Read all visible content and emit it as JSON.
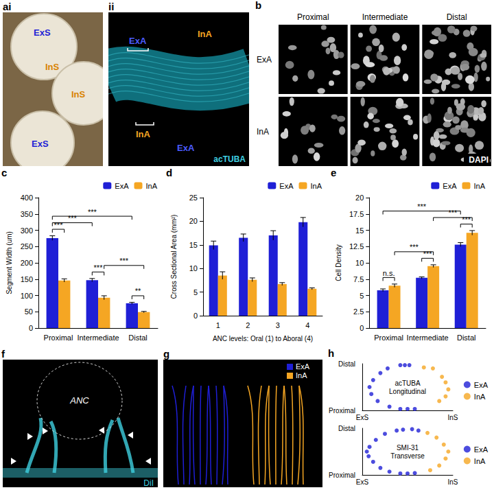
{
  "panel_letters": [
    "ai",
    "ii",
    "b",
    "c",
    "d",
    "e",
    "f",
    "g",
    "h"
  ],
  "images": {
    "ai": {
      "texts": [
        {
          "text": "ExS",
          "color": "#1f1fd6"
        },
        {
          "text": "InS",
          "color": "#d98200"
        },
        {
          "text": "InS",
          "color": "#d98200"
        },
        {
          "text": "ExS",
          "color": "#1f1fd6"
        }
      ]
    },
    "ii": {
      "texts": [
        {
          "text": "ExA",
          "color": "#4b5bff"
        },
        {
          "text": "InA",
          "color": "#f5a623"
        },
        {
          "text": "InA",
          "color": "#f5a623"
        },
        {
          "text": "ExA",
          "color": "#4b5bff"
        },
        {
          "text": "acTUBA",
          "color": "#3fd0e0"
        }
      ]
    },
    "b": {
      "columns": [
        "Proximal",
        "Intermediate",
        "Distal"
      ],
      "rows": [
        "ExA",
        "InA"
      ],
      "stain": "DAPI"
    },
    "f": {
      "region": "ANC",
      "stain": "DiI",
      "color": "#3fd0e0"
    },
    "g": {
      "legend": "top-right",
      "series": [
        {
          "name": "ExA",
          "color": "#1f1fd6"
        },
        {
          "name": "InA",
          "color": "#f5a623"
        }
      ]
    }
  },
  "chart_data": [
    {
      "type": "bar",
      "ylabel": "Segment Width (um)",
      "categories": [
        "Proximal",
        "Intermediate",
        "Distal"
      ],
      "series": [
        {
          "name": "ExA",
          "color": "#1f1fd6",
          "values": [
            276,
            147,
            76
          ],
          "errors": [
            7,
            5,
            3
          ]
        },
        {
          "name": "InA",
          "color": "#f5a623",
          "values": [
            146,
            93,
            49
          ],
          "errors": [
            5,
            6,
            2
          ]
        }
      ],
      "ylim": [
        0,
        400
      ],
      "yticks": [
        0,
        50,
        100,
        150,
        200,
        250,
        300,
        350,
        400
      ],
      "grid": false,
      "legend": "top-right",
      "annotations": [
        {
          "text": "***",
          "from": [
            "Proximal",
            "ExA"
          ],
          "to": [
            "Proximal",
            "InA"
          ]
        },
        {
          "text": "***",
          "from": [
            "Intermediate",
            "ExA"
          ],
          "to": [
            "Intermediate",
            "InA"
          ]
        },
        {
          "text": "**",
          "from": [
            "Distal",
            "ExA"
          ],
          "to": [
            "Distal",
            "InA"
          ]
        },
        {
          "text": "***",
          "from": [
            "Intermediate",
            "InA"
          ],
          "to": [
            "Distal",
            "InA"
          ]
        },
        {
          "text": "***",
          "from": [
            "Proximal",
            "ExA"
          ],
          "to": [
            "Intermediate",
            "ExA"
          ]
        },
        {
          "text": "***",
          "from": [
            "Proximal",
            "ExA"
          ],
          "to": [
            "Distal",
            "ExA"
          ]
        }
      ]
    },
    {
      "type": "bar",
      "xlabel": "ANC levels: Oral (1) to Aboral (4)",
      "ylabel": "Cross Sectional Area (mm²)",
      "categories": [
        "1",
        "2",
        "3",
        "4"
      ],
      "series": [
        {
          "name": "ExA",
          "color": "#1f1fd6",
          "values": [
            14.9,
            16.5,
            17.0,
            19.8
          ],
          "errors": [
            0.9,
            0.8,
            1.0,
            1.0
          ]
        },
        {
          "name": "InA",
          "color": "#f5a623",
          "values": [
            8.5,
            7.6,
            6.7,
            5.7
          ],
          "errors": [
            0.8,
            0.4,
            0.3,
            0.2
          ]
        }
      ],
      "ylim": [
        0,
        25
      ],
      "yticks": [
        0,
        5,
        10,
        15,
        20,
        25
      ],
      "grid": false,
      "legend": "top-right"
    },
    {
      "type": "bar",
      "ylabel": "Cell Density",
      "categories": [
        "Proximal",
        "Intermediate",
        "Distal"
      ],
      "series": [
        {
          "name": "ExA",
          "color": "#1f1fd6",
          "values": [
            5.8,
            7.7,
            12.8
          ],
          "errors": [
            0.2,
            0.15,
            0.3
          ]
        },
        {
          "name": "InA",
          "color": "#f5a623",
          "values": [
            6.5,
            9.5,
            14.6
          ],
          "errors": [
            0.25,
            0.2,
            0.35
          ]
        }
      ],
      "ylim": [
        0,
        20
      ],
      "yticks": [
        0,
        2.5,
        5,
        7.5,
        10,
        12.5,
        15,
        17.5,
        20
      ],
      "grid": false,
      "legend": "top-right",
      "annotations": [
        {
          "text": "n.s.",
          "from": [
            "Proximal",
            "ExA"
          ],
          "to": [
            "Proximal",
            "InA"
          ]
        },
        {
          "text": "***",
          "from": [
            "Intermediate",
            "ExA"
          ],
          "to": [
            "Intermediate",
            "InA"
          ]
        },
        {
          "text": "***",
          "from": [
            "Distal",
            "ExA"
          ],
          "to": [
            "Distal",
            "InA"
          ]
        },
        {
          "text": "***",
          "from": [
            "Proximal",
            "InA"
          ],
          "to": [
            "Intermediate",
            "InA"
          ]
        },
        {
          "text": "***",
          "from": [
            "Intermediate",
            "InA"
          ],
          "to": [
            "Distal",
            "InA"
          ]
        },
        {
          "text": "***",
          "from": [
            "Proximal",
            "ExA"
          ],
          "to": [
            "Distal",
            "ExA"
          ]
        }
      ]
    },
    {
      "type": "scatter",
      "title": "acTUBA Longitudinal",
      "xlim": [
        0,
        1
      ],
      "ylim": [
        0,
        1
      ],
      "xticks": [
        {
          "value": 0,
          "label": "ExS"
        },
        {
          "value": 1,
          "label": "InS"
        }
      ],
      "yticks": [
        {
          "value": 0,
          "label": "Proximal"
        },
        {
          "value": 1,
          "label": "Distal"
        }
      ],
      "grid": false,
      "legend": "right",
      "series": [
        {
          "name": "ExA",
          "color": "#1f1fd6",
          "values": [
            [
              0.42,
              0.97
            ],
            [
              0.47,
              0.97
            ],
            [
              0.52,
              0.97
            ],
            [
              0.28,
              0.9
            ],
            [
              0.2,
              0.8
            ],
            [
              0.12,
              0.65
            ],
            [
              0.08,
              0.5
            ],
            [
              0.1,
              0.35
            ],
            [
              0.17,
              0.2
            ],
            [
              0.3,
              0.08
            ],
            [
              0.42,
              0.03
            ],
            [
              0.5,
              0.03
            ],
            [
              0.58,
              0.03
            ]
          ]
        },
        {
          "name": "InA",
          "color": "#f5a623",
          "values": [
            [
              0.68,
              0.92
            ],
            [
              0.78,
              0.9
            ],
            [
              0.88,
              0.72
            ],
            [
              0.92,
              0.6
            ],
            [
              0.95,
              0.45
            ],
            [
              0.92,
              0.3
            ],
            [
              0.85,
              0.2
            ]
          ]
        }
      ]
    },
    {
      "type": "scatter",
      "title": "SMI-31 Transverse",
      "xlim": [
        0,
        1
      ],
      "ylim": [
        0,
        1
      ],
      "xticks": [
        {
          "value": 0,
          "label": "ExS"
        },
        {
          "value": 1,
          "label": "InS"
        }
      ],
      "yticks": [
        {
          "value": 0,
          "label": "Proximal"
        },
        {
          "value": 1,
          "label": "Distal"
        }
      ],
      "grid": false,
      "legend": "right",
      "series": [
        {
          "name": "ExA",
          "color": "#1f1fd6",
          "values": [
            [
              0.38,
              0.95
            ],
            [
              0.45,
              0.97
            ],
            [
              0.55,
              0.98
            ],
            [
              0.62,
              0.95
            ],
            [
              0.25,
              0.88
            ],
            [
              0.15,
              0.75
            ],
            [
              0.08,
              0.6
            ],
            [
              0.05,
              0.5
            ],
            [
              0.07,
              0.4
            ],
            [
              0.12,
              0.28
            ],
            [
              0.2,
              0.15
            ],
            [
              0.3,
              0.07
            ],
            [
              0.42,
              0.03
            ],
            [
              0.5,
              0.03
            ],
            [
              0.58,
              0.04
            ]
          ]
        },
        {
          "name": "InA",
          "color": "#f5a623",
          "values": [
            [
              0.72,
              0.9
            ],
            [
              0.82,
              0.8
            ],
            [
              0.9,
              0.65
            ],
            [
              0.95,
              0.5
            ],
            [
              0.92,
              0.35
            ],
            [
              0.85,
              0.2
            ],
            [
              0.75,
              0.1
            ]
          ]
        }
      ]
    }
  ]
}
